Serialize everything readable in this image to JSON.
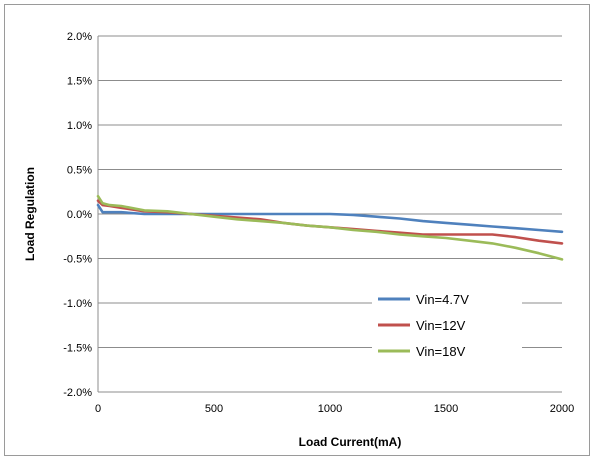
{
  "chart_data": {
    "type": "line",
    "title": "",
    "xlabel": "Load Current(mA)",
    "ylabel": "Load Regulation",
    "xlim": [
      0,
      2000
    ],
    "ylim": [
      -2.0,
      2.0
    ],
    "x_ticks": [
      0,
      500,
      1000,
      1500,
      2000
    ],
    "x_tick_labels": [
      "0",
      "500",
      "1000",
      "1500",
      "2000"
    ],
    "y_ticks": [
      2.0,
      1.5,
      1.0,
      0.5,
      0.0,
      -0.5,
      -1.0,
      -1.5,
      -2.0
    ],
    "y_tick_labels": [
      "2.0%",
      "1.5%",
      "1.0%",
      "0.5%",
      "0.0%",
      "-0.5%",
      "-1.0%",
      "-1.5%",
      "-2.0%"
    ],
    "grid": "horizontal",
    "legend_position": "bottom-right",
    "series": [
      {
        "name": "Vin=4.7V",
        "color": "#4f81bd",
        "points": [
          [
            0,
            0.1
          ],
          [
            20,
            0.02
          ],
          [
            50,
            0.02
          ],
          [
            100,
            0.02
          ],
          [
            200,
            0.0
          ],
          [
            300,
            0.0
          ],
          [
            400,
            0.0
          ],
          [
            500,
            0.0
          ],
          [
            600,
            0.0
          ],
          [
            700,
            0.0
          ],
          [
            800,
            0.0
          ],
          [
            900,
            0.0
          ],
          [
            1000,
            0.0
          ],
          [
            1100,
            -0.01
          ],
          [
            1200,
            -0.03
          ],
          [
            1300,
            -0.05
          ],
          [
            1400,
            -0.08
          ],
          [
            1500,
            -0.1
          ],
          [
            1600,
            -0.12
          ],
          [
            1700,
            -0.14
          ],
          [
            1800,
            -0.16
          ],
          [
            1900,
            -0.18
          ],
          [
            2000,
            -0.2
          ]
        ]
      },
      {
        "name": "Vin=12V",
        "color": "#c0504d",
        "points": [
          [
            0,
            0.15
          ],
          [
            20,
            0.1
          ],
          [
            50,
            0.09
          ],
          [
            100,
            0.07
          ],
          [
            200,
            0.03
          ],
          [
            300,
            0.02
          ],
          [
            400,
            0.0
          ],
          [
            500,
            -0.02
          ],
          [
            600,
            -0.04
          ],
          [
            700,
            -0.06
          ],
          [
            800,
            -0.1
          ],
          [
            900,
            -0.13
          ],
          [
            1000,
            -0.15
          ],
          [
            1100,
            -0.17
          ],
          [
            1200,
            -0.19
          ],
          [
            1300,
            -0.21
          ],
          [
            1400,
            -0.23
          ],
          [
            1500,
            -0.23
          ],
          [
            1600,
            -0.23
          ],
          [
            1700,
            -0.23
          ],
          [
            1800,
            -0.26
          ],
          [
            1900,
            -0.3
          ],
          [
            2000,
            -0.33
          ]
        ]
      },
      {
        "name": "Vin=18V",
        "color": "#9bbb59",
        "points": [
          [
            0,
            0.2
          ],
          [
            20,
            0.12
          ],
          [
            50,
            0.1
          ],
          [
            100,
            0.09
          ],
          [
            200,
            0.04
          ],
          [
            300,
            0.03
          ],
          [
            400,
            0.0
          ],
          [
            500,
            -0.03
          ],
          [
            600,
            -0.06
          ],
          [
            700,
            -0.08
          ],
          [
            800,
            -0.1
          ],
          [
            900,
            -0.13
          ],
          [
            1000,
            -0.15
          ],
          [
            1100,
            -0.18
          ],
          [
            1200,
            -0.2
          ],
          [
            1300,
            -0.23
          ],
          [
            1400,
            -0.25
          ],
          [
            1500,
            -0.27
          ],
          [
            1600,
            -0.3
          ],
          [
            1700,
            -0.33
          ],
          [
            1800,
            -0.38
          ],
          [
            1900,
            -0.44
          ],
          [
            2000,
            -0.51
          ]
        ]
      }
    ]
  }
}
